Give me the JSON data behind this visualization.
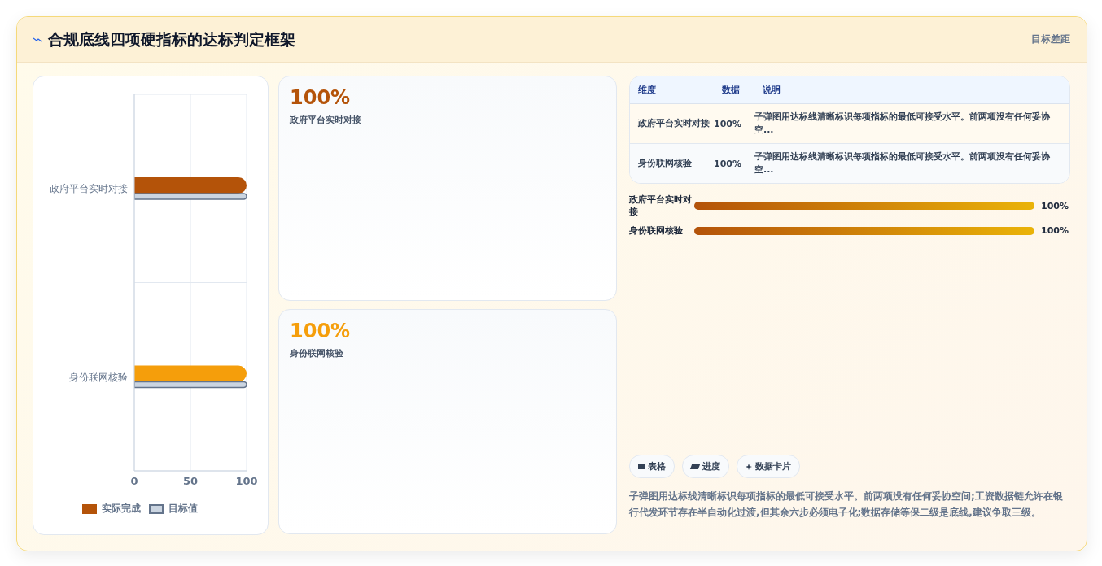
{
  "chart_data": {
    "type": "bar",
    "orientation": "horizontal",
    "title": "合规底线四项硬指标的达标判定框架",
    "categories": [
      "政府平台实时对接",
      "身份联网核验"
    ],
    "series": [
      {
        "name": "实际完成",
        "color": "#b45309",
        "colors": [
          "#b45309",
          "#f59e0b"
        ],
        "values": [
          100,
          100
        ],
        "value_labels": [
          "100%",
          "100%"
        ]
      },
      {
        "name": "目标值",
        "color": "#cbd5e1",
        "values": [
          100,
          100
        ]
      }
    ],
    "xlim": [
      0,
      100
    ],
    "xticks": [
      0,
      50,
      100
    ],
    "grid": true,
    "legend": "bottom",
    "annotations": [
      "目标差距",
      "维度",
      "数据",
      "说明",
      "子弹图用达标线清晰标识每项指标的最低可接受水平。前两项没有任何妥协空...",
      "子弹图用达标线清晰标识每项指标的最低可接受水平。前两项没有任何妥协空...",
      "表格",
      "进度",
      "数据卡片",
      "子弹图用达标线清晰标识每项指标的最低可接受水平。前两项没有任何妥协空间;工资数据链允许在银行代发环节存在半自动化过渡,但其余六步必须电子化;数据存储等保二级是底线,建议争取三级。"
    ]
  }
}
